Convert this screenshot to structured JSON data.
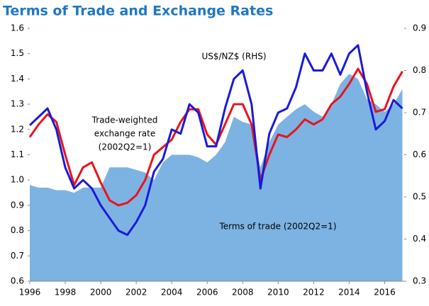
{
  "chart_data": {
    "type": "line",
    "title": "Terms of Trade and Exchange Rates",
    "x": [
      1996,
      1996.5,
      1997,
      1997.5,
      1998,
      1998.5,
      1999,
      1999.5,
      2000,
      2000.5,
      2001,
      2001.5,
      2002,
      2002.5,
      2003,
      2003.5,
      2004,
      2004.5,
      2005,
      2005.5,
      2006,
      2006.5,
      2007,
      2007.5,
      2008,
      2008.5,
      2009,
      2009.5,
      2010,
      2010.5,
      2011,
      2011.5,
      2012,
      2012.5,
      2013,
      2013.5,
      2014,
      2014.5,
      2015,
      2015.5,
      2016,
      2016.5,
      2017
    ],
    "series": [
      {
        "name": "Terms of trade (2002Q2=1)",
        "kind": "area",
        "axis": "y",
        "color": "#7db3e3",
        "values": [
          0.98,
          0.97,
          0.97,
          0.96,
          0.96,
          0.95,
          0.97,
          0.97,
          0.97,
          1.05,
          1.05,
          1.05,
          1.04,
          1.03,
          1.0,
          1.07,
          1.1,
          1.1,
          1.1,
          1.09,
          1.07,
          1.1,
          1.15,
          1.25,
          1.23,
          1.22,
          1.05,
          1.15,
          1.22,
          1.25,
          1.28,
          1.3,
          1.27,
          1.25,
          1.3,
          1.38,
          1.42,
          1.4,
          1.32,
          1.3,
          1.27,
          1.3,
          1.36
        ]
      },
      {
        "name": "Trade-weighted exchange rate (2002Q2=1)",
        "kind": "line",
        "axis": "y",
        "color": "#e8141c",
        "values": [
          1.17,
          1.22,
          1.26,
          1.23,
          1.1,
          0.98,
          1.05,
          1.07,
          0.99,
          0.92,
          0.9,
          0.91,
          0.94,
          1.0,
          1.1,
          1.13,
          1.16,
          1.23,
          1.28,
          1.28,
          1.18,
          1.14,
          1.22,
          1.3,
          1.3,
          1.22,
          1.0,
          1.1,
          1.18,
          1.17,
          1.2,
          1.24,
          1.22,
          1.24,
          1.3,
          1.33,
          1.38,
          1.44,
          1.38,
          1.27,
          1.28,
          1.37,
          1.43
        ]
      },
      {
        "name": "US$/NZ$ (RHS)",
        "kind": "line",
        "axis": "y2",
        "color": "#1a1ad8",
        "values": [
          0.67,
          0.69,
          0.71,
          0.66,
          0.57,
          0.52,
          0.54,
          0.52,
          0.48,
          0.45,
          0.42,
          0.41,
          0.44,
          0.48,
          0.56,
          0.59,
          0.66,
          0.65,
          0.72,
          0.7,
          0.62,
          0.62,
          0.71,
          0.78,
          0.8,
          0.72,
          0.52,
          0.65,
          0.7,
          0.71,
          0.76,
          0.84,
          0.8,
          0.8,
          0.84,
          0.79,
          0.84,
          0.86,
          0.75,
          0.66,
          0.68,
          0.73,
          0.71
        ]
      }
    ],
    "annotations": [
      {
        "lines": [
          "US$/NZ$ (RHS)"
        ]
      },
      {
        "lines": [
          "Trade-weighted",
          "exchange rate",
          "(2002Q2=1)"
        ]
      },
      {
        "lines": [
          "Terms of trade (2002Q2=1)"
        ]
      }
    ],
    "xlim": [
      1996,
      2017.1
    ],
    "xticks": [
      1996,
      1998,
      2000,
      2002,
      2004,
      2006,
      2008,
      2010,
      2012,
      2014,
      2016
    ],
    "ylim": [
      0.6,
      1.6
    ],
    "yticks": [
      {
        "value": 0.6,
        "label": "0.6"
      },
      {
        "value": 0.7,
        "label": "0.7"
      },
      {
        "value": 0.8,
        "label": "0.8"
      },
      {
        "value": 0.9,
        "label": "0.9"
      },
      {
        "value": 1.0,
        "label": "1.0"
      },
      {
        "value": 1.1,
        "label": "1.1"
      },
      {
        "value": 1.2,
        "label": "1.2"
      },
      {
        "value": 1.3,
        "label": "1.3"
      },
      {
        "value": 1.4,
        "label": "1.4"
      },
      {
        "value": 1.5,
        "label": "1.5"
      },
      {
        "value": 1.6,
        "label": "1.6"
      }
    ],
    "y2lim": [
      0.3,
      0.9
    ],
    "y2ticks": [
      0.3,
      0.4,
      0.5,
      0.6,
      0.7,
      0.8,
      0.9
    ],
    "grid": false
  }
}
